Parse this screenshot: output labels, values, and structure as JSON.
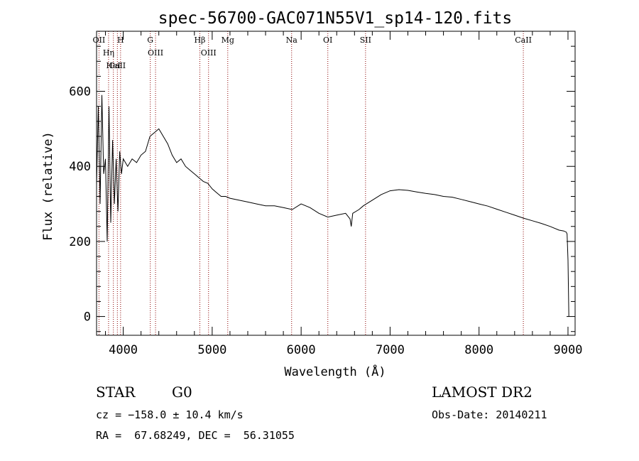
{
  "chart_data": {
    "type": "line",
    "title": "spec-56700-GAC071N55V1_sp14-120.fits",
    "xlabel": "Wavelength (Å)",
    "ylabel": "Flux (relative)",
    "xlim": [
      3700,
      9080
    ],
    "ylim": [
      -50,
      760
    ],
    "xticks": [
      4000,
      5000,
      6000,
      7000,
      8000,
      9000
    ],
    "yticks": [
      0,
      200,
      400,
      600
    ],
    "grid": false,
    "line_color": "#000000",
    "marker_color": "#8b0000",
    "series": [
      {
        "x": [
          3700,
          3720,
          3740,
          3760,
          3780,
          3800,
          3820,
          3840,
          3860,
          3880,
          3900,
          3920,
          3940,
          3960,
          3980,
          4000,
          4050,
          4100,
          4150,
          4200,
          4250,
          4300,
          4350,
          4400,
          4450,
          4500,
          4550,
          4600,
          4650,
          4700,
          4750,
          4800,
          4850,
          4900,
          4950,
          5000,
          5050,
          5100,
          5150,
          5200,
          5300,
          5400,
          5500,
          5600,
          5700,
          5800,
          5900,
          6000,
          6100,
          6200,
          6300,
          6400,
          6500,
          6550,
          6563,
          6580,
          6650,
          6700,
          6800,
          6900,
          7000,
          7100,
          7200,
          7300,
          7400,
          7500,
          7600,
          7700,
          7800,
          7900,
          8000,
          8100,
          8200,
          8300,
          8400,
          8500,
          8600,
          8700,
          8800,
          8900,
          8950,
          8980,
          8990,
          9000,
          9010
        ],
        "y": [
          350,
          560,
          300,
          590,
          380,
          420,
          200,
          560,
          250,
          470,
          300,
          420,
          280,
          440,
          380,
          420,
          400,
          420,
          410,
          430,
          440,
          480,
          490,
          500,
          480,
          460,
          430,
          410,
          420,
          400,
          390,
          380,
          370,
          360,
          355,
          340,
          330,
          320,
          320,
          315,
          310,
          305,
          300,
          295,
          295,
          290,
          285,
          300,
          290,
          275,
          265,
          270,
          275,
          260,
          240,
          275,
          285,
          295,
          310,
          325,
          335,
          338,
          336,
          332,
          328,
          325,
          320,
          318,
          312,
          306,
          300,
          294,
          286,
          278,
          270,
          262,
          255,
          248,
          240,
          230,
          228,
          225,
          220,
          150,
          0
        ]
      }
    ],
    "lines": [
      {
        "label": "OII",
        "wave": 3727
      },
      {
        "label": "Hη",
        "wave": 3835
      },
      {
        "label": "CaII",
        "wave": 3934
      },
      {
        "label": "H",
        "wave": 3970
      },
      {
        "label": "HeI",
        "wave": 3889
      },
      {
        "label": "G",
        "wave": 4304
      },
      {
        "label": "OIII",
        "wave": 4363
      },
      {
        "label": "Hβ",
        "wave": 4861
      },
      {
        "label": "OIII",
        "wave": 4959
      },
      {
        "label": "Mg",
        "wave": 5175
      },
      {
        "label": "Na",
        "wave": 5893
      },
      {
        "label": "OI",
        "wave": 6300
      },
      {
        "label": "SII",
        "wave": 6724
      },
      {
        "label": "CaII",
        "wave": 8498
      }
    ]
  },
  "info": {
    "class_label": "STAR",
    "subclass": "G0",
    "survey": "LAMOST DR2",
    "cz": "cz = −158.0 ± 10.4 km/s",
    "obs_date": "Obs-Date: 20140211",
    "coords": "RA =  67.68249, DEC =  56.31055"
  }
}
